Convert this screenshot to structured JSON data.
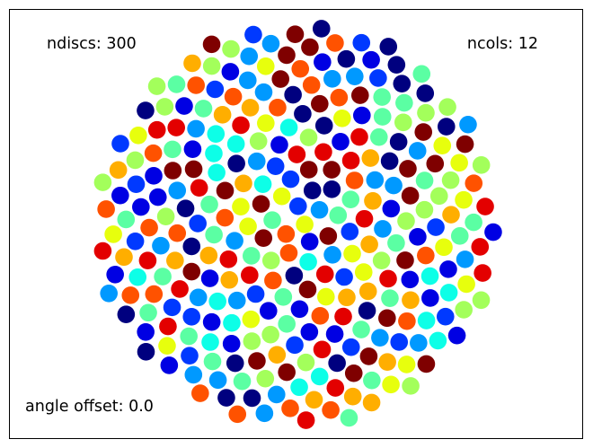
{
  "chart_data": {
    "type": "scatter",
    "title": "",
    "xlabel": "",
    "ylabel": "",
    "axes_visible": false,
    "grid": false,
    "legend": "none",
    "layout": "sunflower",
    "ndiscs": 300,
    "ncols": 12,
    "angle_offset": 0.0,
    "colormap": "jet",
    "palette": [
      "#00007f",
      "#0000e3",
      "#0039ff",
      "#0099ff",
      "#0dffe7",
      "#5bffa3",
      "#a3ff5b",
      "#e7ff0d",
      "#ffae00",
      "#ff5200",
      "#e30000",
      "#7f0000"
    ],
    "annotations": {
      "ndiscs": "ndiscs: 300",
      "ncols": "ncols: 12",
      "angle_offset": "angle offset: 0.0"
    }
  }
}
